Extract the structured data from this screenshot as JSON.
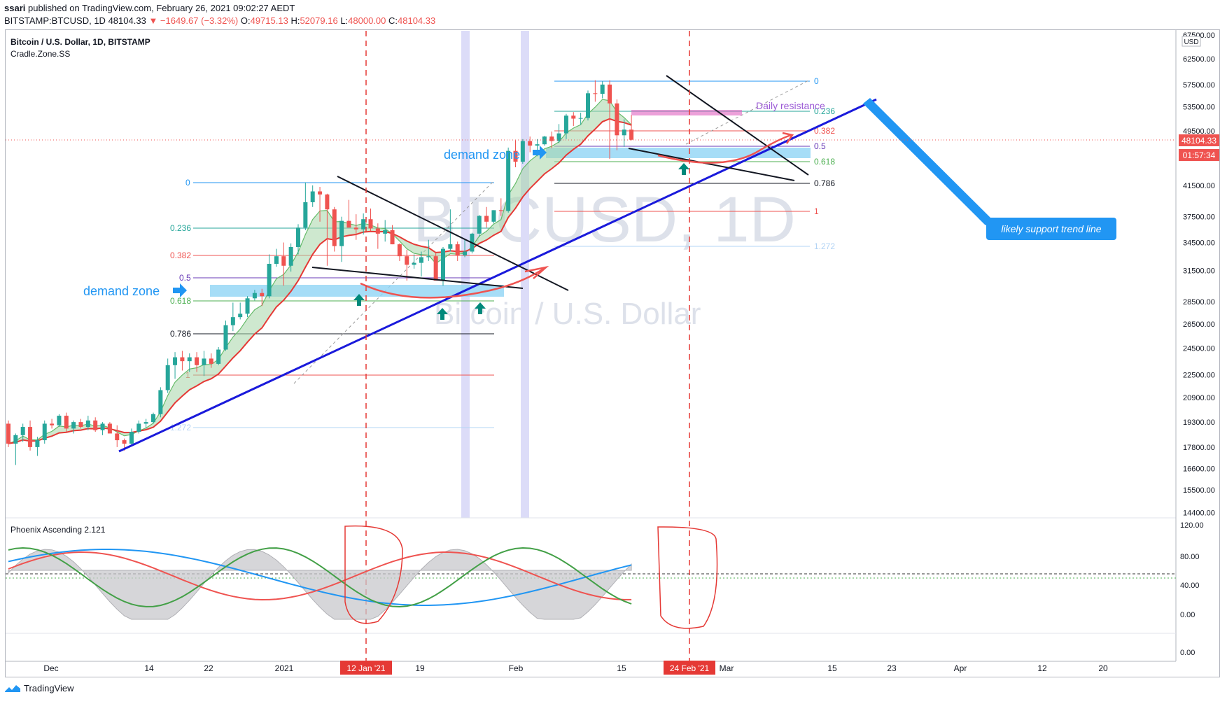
{
  "header": {
    "publisher": "ssari",
    "published_text": "published on TradingView.com, February 26, 2021 09:02:27 AEDT",
    "symbol_line": "BITSTAMP:BTCUSD, 1D",
    "last": "48104.33",
    "change": "▼ −1649.67 (−3.32%)",
    "open_label": "O:",
    "open": "49715.13",
    "high_label": "H:",
    "high": "52079.16",
    "low_label": "L:",
    "low": "48000.00",
    "close_label": "C:",
    "close": "48104.33"
  },
  "chart_title": "Bitcoin / U.S. Dollar, 1D, BITSTAMP",
  "indicator_name": "Cradle.Zone.SS",
  "watermark": {
    "symbol": "BTCUSD, 1D",
    "name": "Bitcoin / U.S. Dollar"
  },
  "currency": "USD",
  "price_badge": {
    "price": "48104.33",
    "countdown": "01:57:34"
  },
  "colors": {
    "up": "#26a69a",
    "down": "#ef5350",
    "trendline": "#1a1adb",
    "zone": "#90d4f5",
    "annotation": "#2196f3"
  },
  "annotations": {
    "demand_zone_1": "demand zone",
    "demand_zone_2": "demand zone",
    "daily_resistance": "Daily  resistance",
    "support_callout": "likely support trend line"
  },
  "fib_left": [
    "0",
    "0.236",
    "0.382",
    "0.5",
    "0.618",
    "0.786",
    "1",
    "1.272"
  ],
  "fib_right": [
    "0",
    "0.236",
    "0.382",
    "0.5",
    "0.618",
    "0.786",
    "1",
    "1.272"
  ],
  "oscillator": {
    "name": "Phoenix Ascending 2.121",
    "ticks": [
      "120.00",
      "80.00",
      "40.00",
      "0.00",
      "0.00"
    ]
  },
  "chart_data": {
    "type": "candlestick",
    "title": "Bitcoin / U.S. Dollar, 1D, BITSTAMP",
    "y_axis_ticks": [
      "67500.00",
      "62500.00",
      "57500.00",
      "53500.00",
      "49500.00",
      "45500.00",
      "41500.00",
      "37500.00",
      "34500.00",
      "31500.00",
      "28500.00",
      "26500.00",
      "24500.00",
      "22500.00",
      "20900.00",
      "19300.00",
      "17800.00",
      "16600.00",
      "15500.00",
      "14400.00"
    ],
    "x_axis_ticks": [
      "Dec",
      "14",
      "22",
      "2021",
      "12 Jan '21",
      "19",
      "Feb",
      "15",
      "24 Feb '21",
      "Mar",
      "15",
      "23",
      "Apr",
      "12",
      "20"
    ],
    "y_scale": "log",
    "candles_ohlc": [
      [
        19200,
        19400,
        17800,
        18000
      ],
      [
        18000,
        18600,
        16800,
        18500
      ],
      [
        18500,
        19200,
        18100,
        19000
      ],
      [
        19000,
        19400,
        17600,
        17800
      ],
      [
        17800,
        18400,
        17300,
        18200
      ],
      [
        18200,
        19400,
        18000,
        19200
      ],
      [
        19200,
        19500,
        18900,
        19100
      ],
      [
        19100,
        19800,
        19000,
        19700
      ],
      [
        19700,
        19900,
        18700,
        18900
      ],
      [
        18900,
        19400,
        18600,
        19300
      ],
      [
        19300,
        19500,
        18900,
        19000
      ],
      [
        19000,
        19700,
        18800,
        19400
      ],
      [
        19400,
        19600,
        18700,
        18800
      ],
      [
        18800,
        19300,
        18500,
        19200
      ],
      [
        19200,
        19300,
        18900,
        18600
      ],
      [
        18600,
        19100,
        17800,
        18200
      ],
      [
        18200,
        18300,
        17600,
        18000
      ],
      [
        18000,
        18900,
        17900,
        18700
      ],
      [
        18700,
        19400,
        18600,
        19200
      ],
      [
        19200,
        19500,
        18900,
        19300
      ],
      [
        19300,
        19900,
        19200,
        19800
      ],
      [
        19800,
        21600,
        19600,
        21400
      ],
      [
        21400,
        23700,
        21200,
        23200
      ],
      [
        23200,
        24200,
        22200,
        23800
      ],
      [
        23800,
        24300,
        22800,
        23500
      ],
      [
        23500,
        24100,
        22700,
        23800
      ],
      [
        23800,
        24200,
        22700,
        23200
      ],
      [
        23200,
        24300,
        22400,
        23700
      ],
      [
        23700,
        24100,
        23000,
        23300
      ],
      [
        23300,
        24600,
        23200,
        24400
      ],
      [
        24400,
        26800,
        24300,
        26400
      ],
      [
        26400,
        28400,
        25900,
        27100
      ],
      [
        27100,
        28400,
        26900,
        27400
      ],
      [
        27400,
        29000,
        27100,
        28800
      ],
      [
        28800,
        29600,
        28600,
        29300
      ],
      [
        29300,
        29700,
        28100,
        29000
      ],
      [
        29000,
        33200,
        28800,
        32200
      ],
      [
        32200,
        33800,
        31900,
        33000
      ],
      [
        33000,
        34500,
        30000,
        32000
      ],
      [
        32000,
        34400,
        31400,
        34000
      ],
      [
        34000,
        36600,
        33200,
        36200
      ],
      [
        36200,
        41900,
        35900,
        39300
      ],
      [
        39300,
        41500,
        38700,
        40700
      ],
      [
        40700,
        41300,
        36900,
        40300
      ],
      [
        40300,
        40400,
        32000,
        38400
      ],
      [
        38400,
        38700,
        33500,
        34100
      ],
      [
        34100,
        37500,
        32400,
        37000
      ],
      [
        37000,
        39600,
        36300,
        36200
      ],
      [
        36200,
        37800,
        34800,
        36000
      ],
      [
        36000,
        37900,
        35400,
        37200
      ],
      [
        37200,
        38500,
        35800,
        36100
      ],
      [
        36100,
        36700,
        33800,
        35500
      ],
      [
        35500,
        37100,
        34600,
        35900
      ],
      [
        35900,
        36500,
        34300,
        34300
      ],
      [
        34300,
        34400,
        32500,
        33000
      ],
      [
        33000,
        33700,
        30500,
        32100
      ],
      [
        32100,
        33200,
        31700,
        32300
      ],
      [
        32300,
        33500,
        30900,
        32900
      ],
      [
        32900,
        34800,
        32500,
        33000
      ],
      [
        33000,
        33400,
        31600,
        30500
      ],
      [
        30500,
        34000,
        30000,
        33800
      ],
      [
        33800,
        38400,
        33500,
        34300
      ],
      [
        34300,
        34600,
        32500,
        33100
      ],
      [
        33100,
        34900,
        32900,
        33500
      ],
      [
        33500,
        35600,
        33300,
        35500
      ],
      [
        35500,
        37700,
        35100,
        37600
      ],
      [
        37600,
        38700,
        36200,
        36900
      ],
      [
        36900,
        38300,
        36700,
        38300
      ],
      [
        38300,
        39800,
        37600,
        38200
      ],
      [
        38200,
        46900,
        38000,
        46400
      ],
      [
        46400,
        48000,
        44000,
        44800
      ],
      [
        44800,
        48200,
        44500,
        47900
      ],
      [
        47900,
        48600,
        46200,
        47200
      ],
      [
        47200,
        48200,
        45600,
        47400
      ],
      [
        47400,
        48700,
        47200,
        48600
      ],
      [
        48600,
        49400,
        46800,
        47900
      ],
      [
        47900,
        50600,
        47600,
        49100
      ],
      [
        49100,
        52300,
        48200,
        52000
      ],
      [
        52000,
        52600,
        50300,
        51500
      ],
      [
        51500,
        52500,
        50500,
        51600
      ],
      [
        51600,
        56400,
        51200,
        55900
      ],
      [
        55900,
        58300,
        54400,
        55800
      ],
      [
        55800,
        58100,
        55000,
        57500
      ],
      [
        57500,
        58300,
        45200,
        54100
      ],
      [
        54100,
        54800,
        46500,
        48800
      ],
      [
        48800,
        51400,
        47000,
        49700
      ],
      [
        49700,
        52100,
        48000,
        48100
      ]
    ],
    "legend": []
  }
}
